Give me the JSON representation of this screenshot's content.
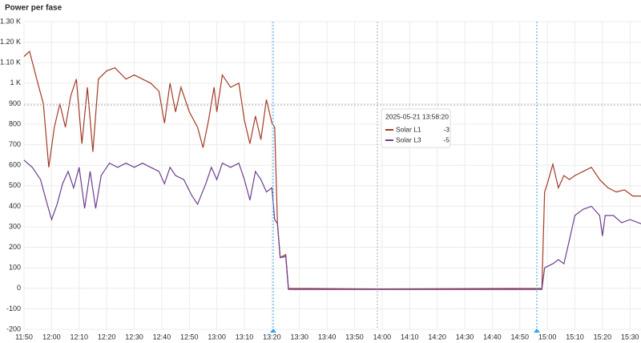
{
  "chart_data": {
    "type": "line",
    "title": "Power per fase",
    "xlim": [
      "11:50",
      "15:34"
    ],
    "xticks": [
      "11:50",
      "12:00",
      "12:10",
      "12:20",
      "12:30",
      "12:40",
      "12:50",
      "13:00",
      "13:10",
      "13:20",
      "13:30",
      "13:40",
      "13:50",
      "14:00",
      "14:10",
      "14:20",
      "14:30",
      "14:40",
      "14:50",
      "15:00",
      "15:10",
      "15:20",
      "15:30"
    ],
    "ylim": [
      -200,
      1300
    ],
    "yticks": [
      -200,
      -100,
      0,
      100,
      200,
      300,
      400,
      500,
      600,
      700,
      800,
      900,
      {
        "value": 1000,
        "label": "1 K"
      },
      {
        "value": 1100,
        "label": "1.10 K"
      },
      {
        "value": 1200,
        "label": "1.20 K"
      },
      {
        "value": 1300,
        "label": "1.30 K"
      }
    ],
    "grid": true,
    "series": [
      {
        "name": "Solar L1",
        "color": "#a33b26",
        "x": [
          "11:50",
          "11:52",
          "11:55",
          "11:57",
          "11:59",
          "12:01",
          "12:03",
          "12:05",
          "12:07",
          "12:09",
          "12:11",
          "12:13",
          "12:15",
          "12:17",
          "12:20",
          "12:23",
          "12:27",
          "12:30",
          "12:33",
          "12:36",
          "12:39",
          "12:41",
          "12:43",
          "12:45",
          "12:47",
          "12:50",
          "12:53",
          "12:55",
          "12:57",
          "12:59",
          "13:00",
          "13:02",
          "13:05",
          "13:08",
          "13:10",
          "13:12",
          "13:14",
          "13:16",
          "13:18",
          "13:20",
          "13:21",
          "13:22",
          "13:23",
          "13:25",
          "13:26",
          "13:58",
          "14:58",
          "14:59",
          "15:00",
          "15:02",
          "15:04",
          "15:06",
          "15:08",
          "15:10",
          "15:13",
          "15:16",
          "15:19",
          "15:22",
          "15:25",
          "15:28",
          "15:31",
          "15:34"
        ],
        "values": [
          1130,
          1155,
          1000,
          900,
          590,
          785,
          900,
          785,
          940,
          1020,
          705,
          980,
          665,
          1020,
          1060,
          1075,
          1020,
          1040,
          1020,
          1000,
          960,
          805,
          1000,
          860,
          980,
          860,
          785,
          685,
          820,
          980,
          860,
          1040,
          980,
          1000,
          820,
          705,
          840,
          725,
          920,
          805,
          785,
          315,
          150,
          165,
          0,
          -3,
          0,
          470,
          510,
          605,
          490,
          550,
          530,
          550,
          570,
          590,
          530,
          490,
          470,
          480,
          450,
          450
        ]
      },
      {
        "name": "Solar L3",
        "color": "#6c3f8f",
        "x": [
          "11:50",
          "11:53",
          "11:56",
          "11:58",
          "12:00",
          "12:02",
          "12:04",
          "12:06",
          "12:08",
          "12:10",
          "12:12",
          "12:14",
          "12:16",
          "12:18",
          "12:21",
          "12:24",
          "12:27",
          "12:30",
          "12:33",
          "12:36",
          "12:39",
          "12:41",
          "12:43",
          "12:45",
          "12:48",
          "12:51",
          "12:53",
          "12:56",
          "12:58",
          "13:00",
          "13:02",
          "13:05",
          "13:08",
          "13:10",
          "13:12",
          "13:14",
          "13:16",
          "13:18",
          "13:20",
          "13:21",
          "13:22",
          "13:23",
          "13:25",
          "13:26",
          "13:58",
          "14:58",
          "14:59",
          "15:02",
          "15:04",
          "15:06",
          "15:08",
          "15:10",
          "15:13",
          "15:16",
          "15:19",
          "15:20",
          "15:21",
          "15:24",
          "15:27",
          "15:30",
          "15:34"
        ],
        "values": [
          625,
          590,
          530,
          430,
          335,
          410,
          510,
          570,
          490,
          590,
          390,
          570,
          390,
          550,
          610,
          590,
          610,
          590,
          610,
          590,
          570,
          510,
          590,
          550,
          530,
          450,
          410,
          510,
          590,
          530,
          610,
          590,
          610,
          530,
          430,
          570,
          530,
          470,
          490,
          335,
          315,
          150,
          155,
          -5,
          -5,
          -5,
          100,
          120,
          140,
          120,
          235,
          355,
          385,
          400,
          355,
          255,
          355,
          355,
          320,
          335,
          315
        ]
      }
    ],
    "tooltip": {
      "time": "2025-05-21 13:58:20",
      "values": [
        -3,
        -5
      ]
    }
  }
}
